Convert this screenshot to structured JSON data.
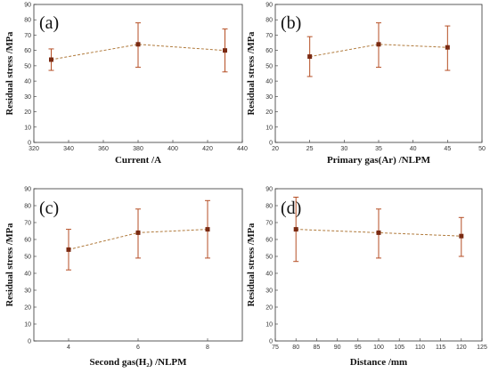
{
  "chart_data": [
    {
      "type": "line",
      "panel_label": "(a)",
      "xlabel": "Current /A",
      "ylabel": "Residual stress /MPa",
      "xlim": [
        320,
        440
      ],
      "ylim": [
        0,
        90
      ],
      "xticks": [
        320,
        340,
        360,
        380,
        400,
        420,
        440
      ],
      "yticks": [
        0,
        10,
        20,
        30,
        40,
        50,
        60,
        70,
        80,
        90
      ],
      "x": [
        330,
        380,
        430
      ],
      "y": [
        54,
        64,
        60
      ],
      "err_low": [
        47,
        49,
        46
      ],
      "err_high": [
        61,
        78,
        74
      ],
      "grid": false
    },
    {
      "type": "line",
      "panel_label": "(b)",
      "xlabel": "Primary gas(Ar) /NLPM",
      "ylabel": "Residual stress /MPa",
      "xlim": [
        20,
        50
      ],
      "ylim": [
        0,
        90
      ],
      "xticks": [
        20,
        25,
        30,
        35,
        40,
        45,
        50
      ],
      "yticks": [
        0,
        10,
        20,
        30,
        40,
        50,
        60,
        70,
        80,
        90
      ],
      "x": [
        25,
        35,
        45
      ],
      "y": [
        56,
        64,
        62
      ],
      "err_low": [
        43,
        49,
        47
      ],
      "err_high": [
        69,
        78,
        76
      ],
      "grid": false
    },
    {
      "type": "line",
      "panel_label": "(c)",
      "xlabel": "Second gas(H₂) /NLPM",
      "ylabel": "Residual stress /MPa",
      "xlim": [
        3,
        9
      ],
      "ylim": [
        0,
        90
      ],
      "xticks": [
        4,
        6,
        8
      ],
      "yticks": [
        0,
        10,
        20,
        30,
        40,
        50,
        60,
        70,
        80,
        90
      ],
      "x": [
        4,
        6,
        8
      ],
      "y": [
        54,
        64,
        66
      ],
      "err_low": [
        42,
        49,
        49
      ],
      "err_high": [
        66,
        78,
        83
      ],
      "grid": false
    },
    {
      "type": "line",
      "panel_label": "(d)",
      "xlabel": "Distance /mm",
      "ylabel": "Residual stress /MPa",
      "xlim": [
        75,
        125
      ],
      "ylim": [
        0,
        90
      ],
      "xticks": [
        75,
        80,
        85,
        90,
        95,
        100,
        105,
        110,
        115,
        120,
        125
      ],
      "yticks": [
        0,
        10,
        20,
        30,
        40,
        50,
        60,
        70,
        80,
        90
      ],
      "x": [
        80,
        100,
        120
      ],
      "y": [
        66,
        64,
        62
      ],
      "err_low": [
        47,
        49,
        50
      ],
      "err_high": [
        85,
        78,
        73
      ],
      "grid": false
    }
  ],
  "colors": {
    "line": "#b07a3c",
    "marker": "#7a2a12",
    "errorbar": "#b54e24",
    "axis": "#333333"
  }
}
